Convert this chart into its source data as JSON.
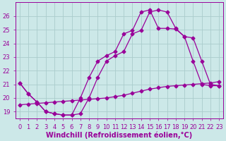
{
  "background_color": "#cce8e8",
  "grid_color": "#aacccc",
  "line_color": "#990099",
  "xlabel": "Windchill (Refroidissement éolien,°C)",
  "xlim": [
    -0.5,
    23.5
  ],
  "ylim": [
    18.5,
    27.0
  ],
  "yticks": [
    19,
    20,
    21,
    22,
    23,
    24,
    25,
    26
  ],
  "xticks": [
    0,
    1,
    2,
    3,
    4,
    5,
    6,
    7,
    8,
    9,
    10,
    11,
    12,
    13,
    14,
    15,
    16,
    17,
    18,
    19,
    20,
    21,
    22,
    23
  ],
  "series1_x": [
    0,
    1,
    2,
    3,
    4,
    5,
    6,
    7,
    8,
    9,
    10,
    11,
    12,
    13,
    14,
    15,
    16,
    17,
    18,
    19,
    20,
    21,
    22,
    23
  ],
  "series1_y": [
    21.1,
    20.3,
    19.7,
    19.0,
    18.85,
    18.75,
    18.75,
    18.85,
    20.0,
    21.5,
    22.7,
    23.1,
    23.4,
    24.7,
    24.95,
    26.3,
    26.45,
    26.3,
    25.1,
    24.5,
    24.4,
    22.7,
    21.0,
    20.9
  ],
  "series2_x": [
    0,
    1,
    2,
    3,
    4,
    5,
    6,
    7,
    8,
    9,
    10,
    11,
    12,
    13,
    14,
    15,
    16,
    17,
    18,
    19,
    20,
    21,
    22,
    23
  ],
  "series2_y": [
    21.1,
    20.3,
    19.7,
    19.0,
    18.85,
    18.75,
    18.75,
    20.0,
    21.5,
    22.7,
    23.1,
    23.4,
    24.7,
    24.95,
    26.3,
    26.45,
    25.1,
    25.1,
    25.05,
    24.5,
    22.7,
    21.0,
    20.9,
    20.9
  ],
  "series3_x": [
    0,
    1,
    2,
    3,
    4,
    5,
    6,
    7,
    8,
    9,
    10,
    11,
    12,
    13,
    14,
    15,
    16,
    17,
    18,
    19,
    20,
    21,
    22,
    23
  ],
  "series3_y": [
    19.5,
    19.55,
    19.6,
    19.65,
    19.7,
    19.75,
    19.8,
    19.85,
    19.9,
    19.95,
    20.0,
    20.1,
    20.2,
    20.35,
    20.5,
    20.65,
    20.75,
    20.85,
    20.9,
    20.95,
    21.0,
    21.05,
    21.1,
    21.2
  ],
  "tick_label_color": "#990099",
  "font_size": 6,
  "marker": "D",
  "marker_size": 2.5,
  "linewidth": 0.9
}
